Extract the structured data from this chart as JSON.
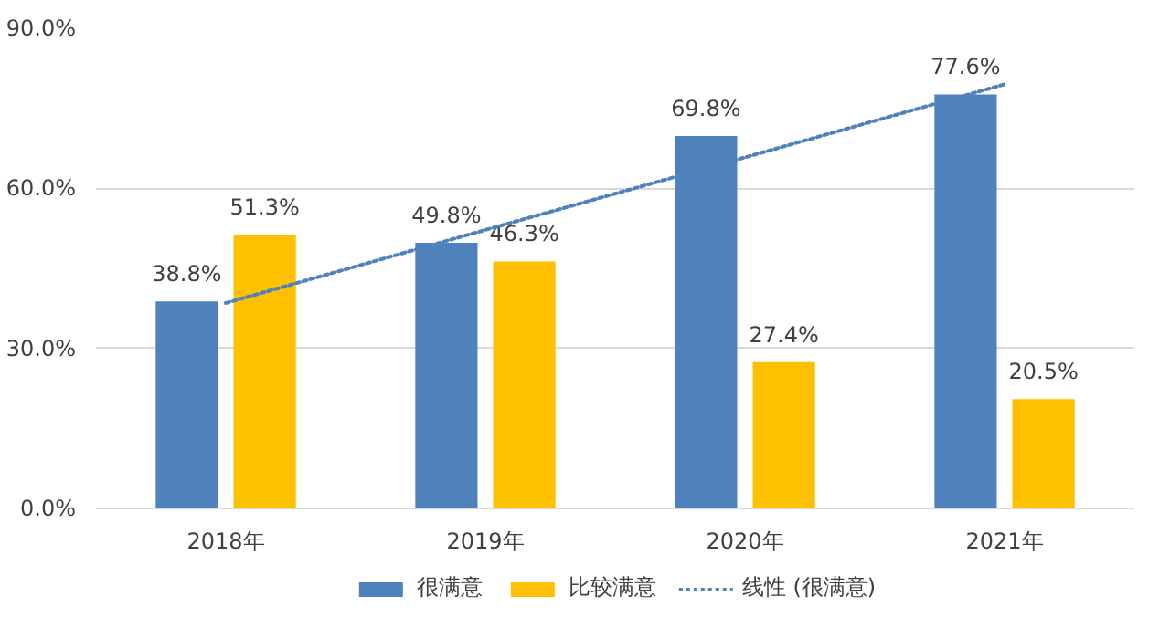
{
  "chart_data": {
    "type": "bar",
    "categories": [
      "2018年",
      "2019年",
      "2020年",
      "2021年"
    ],
    "series": [
      {
        "name": "很满意",
        "color": "#4f81bd",
        "values": [
          38.8,
          49.8,
          69.8,
          77.6
        ],
        "value_labels": [
          "38.8%",
          "49.8%",
          "69.8%",
          "77.6%"
        ]
      },
      {
        "name": "比较满意",
        "color": "#ffc000",
        "values": [
          51.3,
          46.3,
          27.4,
          20.5
        ],
        "value_labels": [
          "51.3%",
          "46.3%",
          "27.4%",
          "20.5%"
        ]
      },
      {
        "name": "线性 (很满意)",
        "type": "line",
        "line_style": "dotted",
        "color": "#4f81bd",
        "values": [
          38.5,
          52.2,
          65.8,
          79.5
        ]
      }
    ],
    "ylim": [
      0,
      90
    ],
    "yticks": [
      {
        "value": 0,
        "label": "0.0%"
      },
      {
        "value": 30,
        "label": "30.0%"
      },
      {
        "value": 60,
        "label": "60.0%"
      },
      {
        "value": 90,
        "label": "90.0%"
      }
    ],
    "grid": "y",
    "legend": "bottom"
  }
}
